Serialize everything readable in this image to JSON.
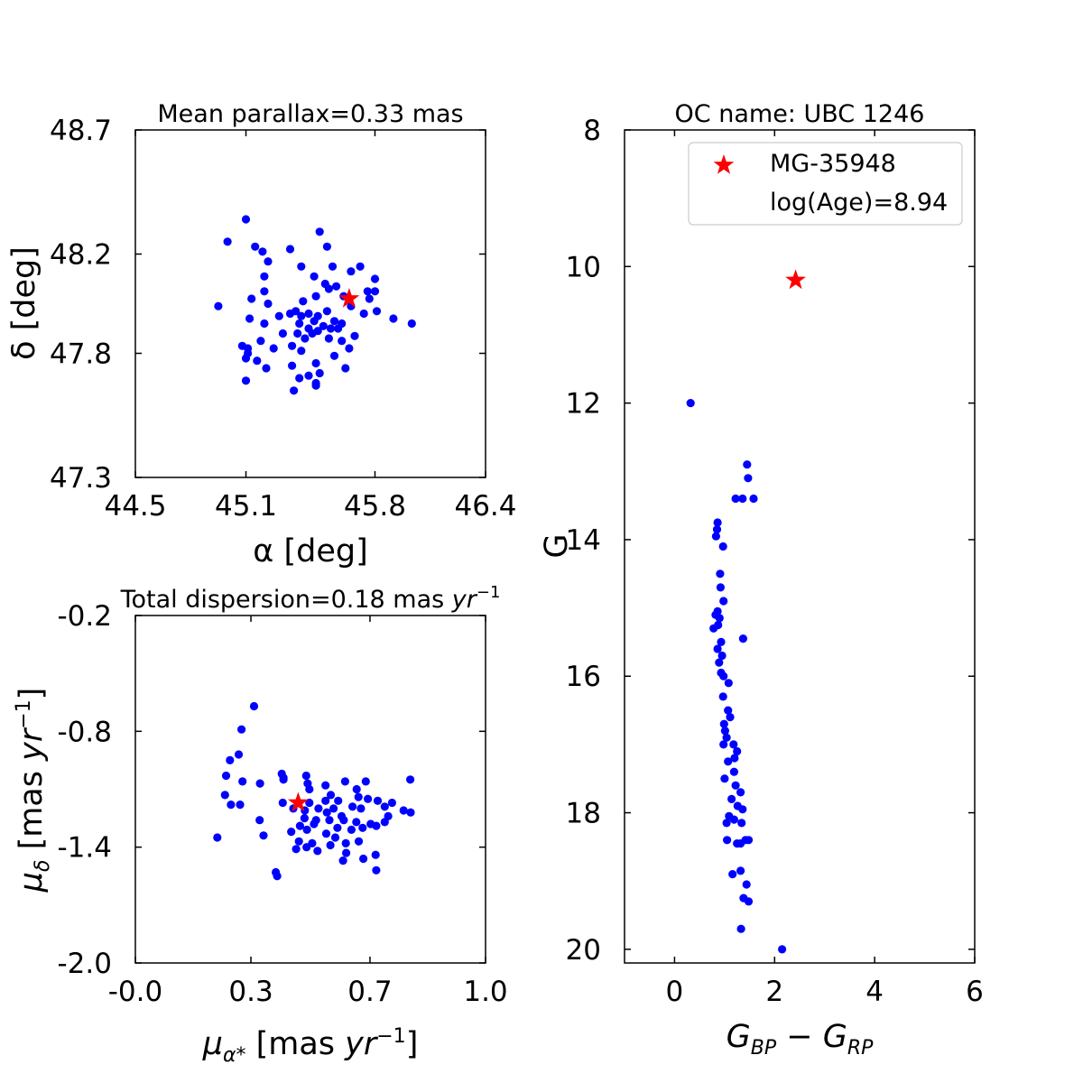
{
  "colors": {
    "points": "#0000ff",
    "highlight": "#ff0000",
    "axes": "#000000"
  },
  "chart_data": [
    {
      "type": "scatter",
      "id": "sky",
      "title": "Mean parallax=0.33 mas",
      "xlabel": "α [deg]",
      "ylabel": "δ [deg]",
      "xlim": [
        44.5,
        46.4
      ],
      "ylim": [
        47.3,
        48.7
      ],
      "xticks": [
        44.5,
        45.1,
        45.8,
        46.4
      ],
      "yticks": [
        47.3,
        47.8,
        48.2,
        48.7
      ],
      "xtick_labels": [
        "44.5",
        "45.1",
        "45.8",
        "46.4"
      ],
      "ytick_labels": [
        "47.3",
        "47.8",
        "48.2",
        "48.7"
      ],
      "grid": false,
      "series": [
        {
          "name": "members",
          "points": [
            [
              45.1,
              48.34
            ],
            [
              45.0,
              48.25
            ],
            [
              45.15,
              48.23
            ],
            [
              45.19,
              48.21
            ],
            [
              45.34,
              48.22
            ],
            [
              45.5,
              48.29
            ],
            [
              45.54,
              48.23
            ],
            [
              45.57,
              48.15
            ],
            [
              45.72,
              48.15
            ],
            [
              45.67,
              48.13
            ],
            [
              45.4,
              48.15
            ],
            [
              45.8,
              48.1
            ],
            [
              45.2,
              48.11
            ],
            [
              45.47,
              48.11
            ],
            [
              45.53,
              48.08
            ],
            [
              45.55,
              48.06
            ],
            [
              45.59,
              48.07
            ],
            [
              45.63,
              48.03
            ],
            [
              45.76,
              48.05
            ],
            [
              45.8,
              48.05
            ],
            [
              45.77,
              48.02
            ],
            [
              45.13,
              48.02
            ],
            [
              45.2,
              48.05
            ],
            [
              45.22,
              48.0
            ],
            [
              45.48,
              48.03
            ],
            [
              45.41,
              48.01
            ],
            [
              45.67,
              47.99
            ],
            [
              45.74,
              47.96
            ],
            [
              45.81,
              47.97
            ],
            [
              45.9,
              47.94
            ],
            [
              46.0,
              47.92
            ],
            [
              44.95,
              47.99
            ],
            [
              45.28,
              47.95
            ],
            [
              45.34,
              47.96
            ],
            [
              45.4,
              47.95
            ],
            [
              45.44,
              47.96
            ],
            [
              45.49,
              47.95
            ],
            [
              45.54,
              47.97
            ],
            [
              45.58,
              47.93
            ],
            [
              45.62,
              47.92
            ],
            [
              45.37,
              47.97
            ],
            [
              45.47,
              47.93
            ],
            [
              45.52,
              47.91
            ],
            [
              45.56,
              47.9
            ],
            [
              45.6,
              47.9
            ],
            [
              45.12,
              47.94
            ],
            [
              45.2,
              47.92
            ],
            [
              45.39,
              47.92
            ],
            [
              45.44,
              47.9
            ],
            [
              45.46,
              47.88
            ],
            [
              45.42,
              47.86
            ],
            [
              45.49,
              47.89
            ],
            [
              45.38,
              47.88
            ],
            [
              45.3,
              47.88
            ],
            [
              45.35,
              47.83
            ],
            [
              45.4,
              47.81
            ],
            [
              45.25,
              47.82
            ],
            [
              45.18,
              47.85
            ],
            [
              45.55,
              47.86
            ],
            [
              45.62,
              47.85
            ],
            [
              45.66,
              47.82
            ],
            [
              45.69,
              47.87
            ],
            [
              45.58,
              47.79
            ],
            [
              45.11,
              47.8
            ],
            [
              45.16,
              47.77
            ],
            [
              45.1,
              47.78
            ],
            [
              45.21,
              47.74
            ],
            [
              45.35,
              47.75
            ],
            [
              45.48,
              47.76
            ],
            [
              45.44,
              47.71
            ],
            [
              45.5,
              47.72
            ],
            [
              45.39,
              47.7
            ],
            [
              45.64,
              47.74
            ],
            [
              45.1,
              47.69
            ],
            [
              45.36,
              47.65
            ],
            [
              45.48,
              47.67
            ],
            [
              45.48,
              47.68
            ],
            [
              45.22,
              48.17
            ],
            [
              45.08,
              47.83
            ],
            [
              45.11,
              47.82
            ]
          ]
        },
        {
          "name": "MG-35948",
          "points": [
            [
              45.66,
              48.02
            ]
          ]
        }
      ]
    },
    {
      "type": "scatter",
      "id": "proper-motion",
      "title": "Total dispersion=0.18 mas yr⁻¹",
      "xlabel": "μα* [mas yr⁻¹]",
      "ylabel": "μδ [mas yr⁻¹]",
      "xlim": [
        -0.0,
        1.0
      ],
      "ylim": [
        -2.0,
        -0.2
      ],
      "xticks": [
        0.0,
        0.33,
        0.67,
        1.0
      ],
      "yticks": [
        -2.0,
        -1.4,
        -0.8,
        -0.2
      ],
      "xtick_labels": [
        "-0.0",
        "0.3",
        "0.7",
        "1.0"
      ],
      "ytick_labels": [
        "-2.0",
        "-1.4",
        "-0.8",
        "-0.2"
      ],
      "grid": false,
      "series": [
        {
          "name": "members",
          "points": [
            [
              0.339,
              -0.67
            ],
            [
              0.303,
              -0.79
            ],
            [
              0.295,
              -0.92
            ],
            [
              0.27,
              -0.95
            ],
            [
              0.259,
              -1.03
            ],
            [
              0.418,
              -1.02
            ],
            [
              0.423,
              -1.04
            ],
            [
              0.356,
              -1.07
            ],
            [
              0.306,
              -1.06
            ],
            [
              0.256,
              -1.13
            ],
            [
              0.423,
              -1.05
            ],
            [
              0.488,
              -1.03
            ],
            [
              0.492,
              -1.07
            ],
            [
              0.497,
              -1.1
            ],
            [
              0.543,
              -1.08
            ],
            [
              0.599,
              -1.06
            ],
            [
              0.632,
              -1.1
            ],
            [
              0.658,
              -1.06
            ],
            [
              0.785,
              -1.05
            ],
            [
              0.421,
              -1.17
            ],
            [
              0.497,
              -1.17
            ],
            [
              0.543,
              -1.16
            ],
            [
              0.558,
              -1.13
            ],
            [
              0.579,
              -1.16
            ],
            [
              0.637,
              -1.14
            ],
            [
              0.664,
              -1.15
            ],
            [
              0.692,
              -1.16
            ],
            [
              0.733,
              -1.17
            ],
            [
              0.299,
              -1.18
            ],
            [
              0.273,
              -1.18
            ],
            [
              0.451,
              -1.2
            ],
            [
              0.484,
              -1.21
            ],
            [
              0.523,
              -1.2
            ],
            [
              0.547,
              -1.22
            ],
            [
              0.566,
              -1.2
            ],
            [
              0.62,
              -1.19
            ],
            [
              0.644,
              -1.2
            ],
            [
              0.712,
              -1.19
            ],
            [
              0.766,
              -1.21
            ],
            [
              0.786,
              -1.22
            ],
            [
              0.483,
              -1.25
            ],
            [
              0.516,
              -1.26
            ],
            [
              0.554,
              -1.26
            ],
            [
              0.589,
              -1.24
            ],
            [
              0.595,
              -1.26
            ],
            [
              0.631,
              -1.27
            ],
            [
              0.672,
              -1.28
            ],
            [
              0.722,
              -1.24
            ],
            [
              0.355,
              -1.26
            ],
            [
              0.47,
              -1.29
            ],
            [
              0.49,
              -1.31
            ],
            [
              0.51,
              -1.28
            ],
            [
              0.577,
              -1.3
            ],
            [
              0.617,
              -1.31
            ],
            [
              0.649,
              -1.3
            ],
            [
              0.688,
              -1.29
            ],
            [
              0.712,
              -1.27
            ],
            [
              0.445,
              -1.32
            ],
            [
              0.545,
              -1.33
            ],
            [
              0.571,
              -1.35
            ],
            [
              0.366,
              -1.34
            ],
            [
              0.234,
              -1.35
            ],
            [
              0.467,
              -1.37
            ],
            [
              0.505,
              -1.38
            ],
            [
              0.557,
              -1.39
            ],
            [
              0.601,
              -1.38
            ],
            [
              0.638,
              -1.37
            ],
            [
              0.459,
              -1.41
            ],
            [
              0.52,
              -1.42
            ],
            [
              0.489,
              -1.4
            ],
            [
              0.602,
              -1.43
            ],
            [
              0.686,
              -1.44
            ],
            [
              0.651,
              -1.46
            ],
            [
              0.593,
              -1.47
            ],
            [
              0.688,
              -1.52
            ],
            [
              0.401,
              -1.53
            ],
            [
              0.405,
              -1.55
            ]
          ]
        },
        {
          "name": "MG-35948",
          "points": [
            [
              0.465,
              -1.17
            ]
          ]
        }
      ]
    },
    {
      "type": "scatter",
      "id": "cmd",
      "title": "OC name: UBC 1246",
      "xlabel": "GBP − GRP",
      "ylabel": "G",
      "xlim": [
        -1.0,
        6.0
      ],
      "ylim": [
        20.2,
        8.0
      ],
      "y_inverted": true,
      "xticks": [
        0,
        2,
        4,
        6
      ],
      "yticks": [
        8,
        10,
        12,
        14,
        16,
        18,
        20
      ],
      "xtick_labels": [
        "0",
        "2",
        "4",
        "6"
      ],
      "ytick_labels": [
        "8",
        "10",
        "12",
        "14",
        "16",
        "18",
        "20"
      ],
      "grid": false,
      "legend": {
        "position": "top-right"
      },
      "series": [
        {
          "name": "members",
          "points": [
            [
              0.32,
              12.0
            ],
            [
              1.45,
              12.9
            ],
            [
              1.47,
              13.1
            ],
            [
              1.22,
              13.4
            ],
            [
              1.36,
              13.4
            ],
            [
              1.58,
              13.4
            ],
            [
              0.86,
              13.75
            ],
            [
              0.85,
              13.85
            ],
            [
              0.83,
              13.95
            ],
            [
              0.97,
              14.1
            ],
            [
              0.91,
              14.5
            ],
            [
              0.92,
              14.7
            ],
            [
              0.98,
              14.9
            ],
            [
              0.86,
              15.05
            ],
            [
              0.82,
              15.1
            ],
            [
              0.9,
              15.15
            ],
            [
              0.87,
              15.25
            ],
            [
              0.78,
              15.3
            ],
            [
              1.37,
              15.45
            ],
            [
              0.93,
              15.5
            ],
            [
              0.86,
              15.6
            ],
            [
              0.95,
              15.7
            ],
            [
              0.89,
              15.8
            ],
            [
              0.93,
              15.95
            ],
            [
              0.98,
              16.0
            ],
            [
              1.08,
              16.1
            ],
            [
              0.97,
              16.3
            ],
            [
              1.07,
              16.5
            ],
            [
              1.11,
              16.6
            ],
            [
              0.99,
              16.7
            ],
            [
              1.01,
              16.8
            ],
            [
              1.04,
              16.9
            ],
            [
              0.98,
              17.0
            ],
            [
              1.18,
              17.0
            ],
            [
              1.25,
              17.1
            ],
            [
              1.2,
              17.2
            ],
            [
              1.07,
              17.25
            ],
            [
              1.19,
              17.4
            ],
            [
              1.0,
              17.5
            ],
            [
              1.22,
              17.6
            ],
            [
              1.32,
              17.7
            ],
            [
              1.14,
              17.8
            ],
            [
              1.26,
              17.9
            ],
            [
              1.36,
              17.95
            ],
            [
              1.09,
              18.05
            ],
            [
              1.19,
              18.1
            ],
            [
              1.04,
              18.15
            ],
            [
              1.34,
              18.15
            ],
            [
              1.42,
              18.4
            ],
            [
              1.25,
              18.45
            ],
            [
              1.05,
              18.4
            ],
            [
              1.32,
              18.45
            ],
            [
              1.48,
              18.4
            ],
            [
              1.16,
              18.9
            ],
            [
              1.32,
              18.85
            ],
            [
              1.44,
              19.05
            ],
            [
              1.38,
              19.25
            ],
            [
              1.48,
              19.3
            ],
            [
              1.33,
              19.7
            ],
            [
              2.15,
              20.0
            ]
          ]
        },
        {
          "name": "MG-35948",
          "points": [
            [
              2.42,
              10.2
            ]
          ]
        }
      ]
    }
  ],
  "legend": {
    "entries": [
      {
        "label": "MG-35948",
        "marker": "star"
      },
      {
        "label": "log(Age)=8.94",
        "marker": "none"
      }
    ]
  }
}
